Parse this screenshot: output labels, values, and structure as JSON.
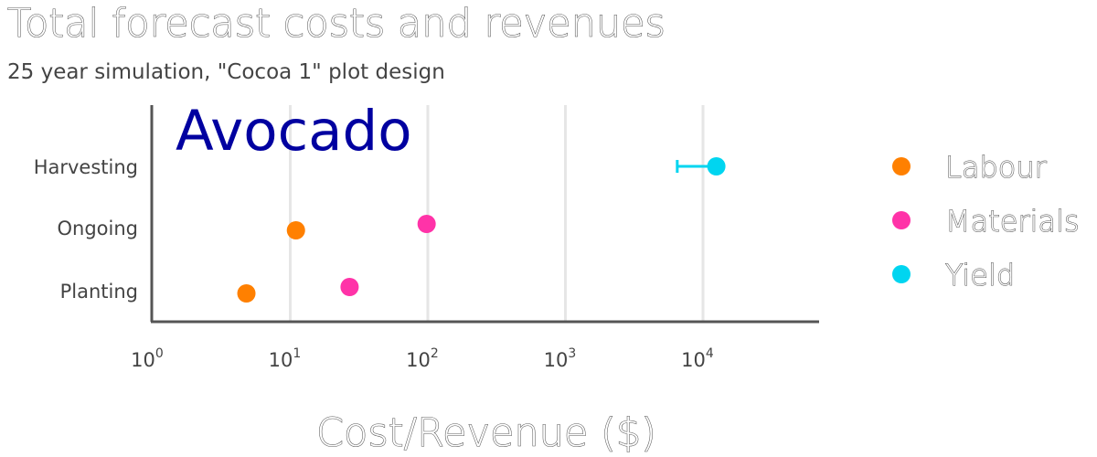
{
  "title": "Total forecast costs and revenues",
  "subtitle": "25 year simulation, \"Cocoa 1\" plot design",
  "chart_data": {
    "type": "scatter",
    "panel_label": "Avocado",
    "panel_label_color": "#0000a0",
    "xlabel": "Cost/Revenue ($)",
    "xscale": "log",
    "xlim": [
      1,
      70000
    ],
    "x_ticks": [
      {
        "base": "10",
        "exp": "0",
        "value": 1
      },
      {
        "base": "10",
        "exp": "1",
        "value": 10
      },
      {
        "base": "10",
        "exp": "2",
        "value": 100
      },
      {
        "base": "10",
        "exp": "3",
        "value": 1000
      },
      {
        "base": "10",
        "exp": "4",
        "value": 10000
      }
    ],
    "categories": [
      "Harvesting",
      "Ongoing",
      "Planting"
    ],
    "grid": "vertical",
    "legend_position": "right",
    "series": [
      {
        "name": "Labour",
        "color": "#ff8000",
        "points": [
          {
            "category": "Ongoing",
            "x": 11
          },
          {
            "category": "Planting",
            "x": 4.8
          }
        ]
      },
      {
        "name": "Materials",
        "color": "#ff33a8",
        "points": [
          {
            "category": "Ongoing",
            "x": 98
          },
          {
            "category": "Planting",
            "x": 27
          }
        ]
      },
      {
        "name": "Yield",
        "color": "#00d5f0",
        "points": [
          {
            "category": "Harvesting",
            "x": 12500,
            "x_low": 6500,
            "x_high": 13500
          }
        ]
      }
    ]
  }
}
